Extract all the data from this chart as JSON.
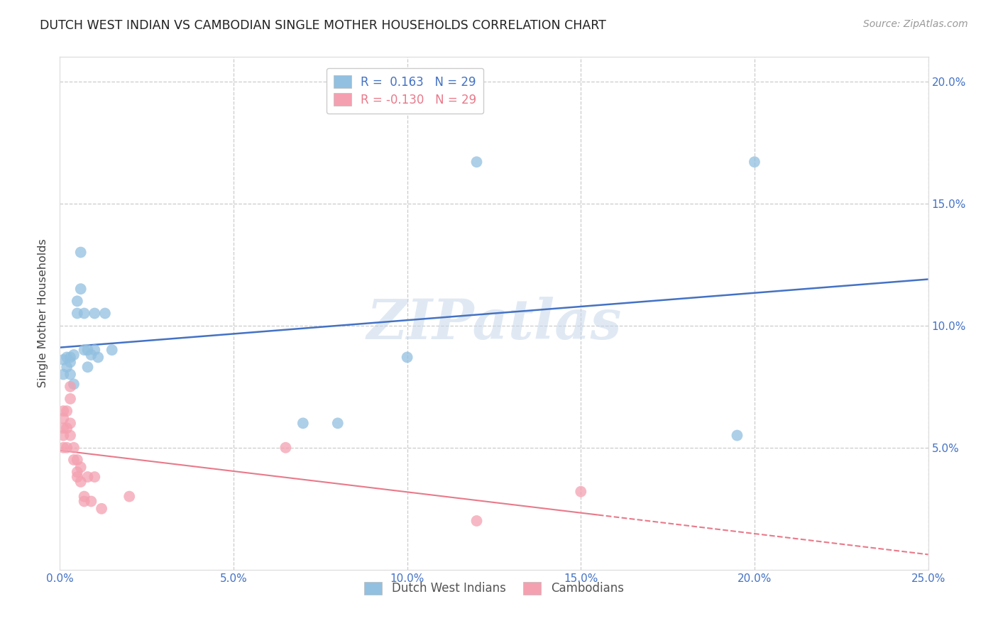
{
  "title": "DUTCH WEST INDIAN VS CAMBODIAN SINGLE MOTHER HOUSEHOLDS CORRELATION CHART",
  "source": "Source: ZipAtlas.com",
  "ylabel": "Single Mother Households",
  "xlim": [
    0.0,
    0.25
  ],
  "ylim": [
    0.0,
    0.21
  ],
  "xticks": [
    0.0,
    0.05,
    0.1,
    0.15,
    0.2,
    0.25
  ],
  "yticks": [
    0.0,
    0.05,
    0.1,
    0.15,
    0.2
  ],
  "xtick_labels": [
    "0.0%",
    "5.0%",
    "10.0%",
    "15.0%",
    "20.0%",
    "25.0%"
  ],
  "ytick_labels": [
    "",
    "5.0%",
    "10.0%",
    "15.0%",
    "20.0%"
  ],
  "right_ytick_labels": [
    "",
    "5.0%",
    "10.0%",
    "15.0%",
    "20.0%"
  ],
  "legend_line1": "R =  0.163   N = 29",
  "legend_line2": "R = -0.130   N = 29",
  "legend_bottom": [
    "Dutch West Indians",
    "Cambodians"
  ],
  "blue_scatter_color": "#92c0e0",
  "pink_scatter_color": "#f4a0b0",
  "blue_line_color": "#4472c4",
  "pink_line_color": "#e87a8a",
  "watermark": "ZIPatlas",
  "dutch_x": [
    0.001,
    0.001,
    0.002,
    0.002,
    0.003,
    0.003,
    0.003,
    0.004,
    0.004,
    0.005,
    0.005,
    0.006,
    0.006,
    0.007,
    0.007,
    0.008,
    0.008,
    0.009,
    0.01,
    0.01,
    0.011,
    0.013,
    0.015,
    0.07,
    0.08,
    0.1,
    0.12,
    0.195,
    0.2
  ],
  "dutch_y": [
    0.086,
    0.08,
    0.087,
    0.083,
    0.087,
    0.085,
    0.08,
    0.088,
    0.076,
    0.11,
    0.105,
    0.13,
    0.115,
    0.105,
    0.09,
    0.09,
    0.083,
    0.088,
    0.105,
    0.09,
    0.087,
    0.105,
    0.09,
    0.06,
    0.06,
    0.087,
    0.167,
    0.055,
    0.167
  ],
  "cambodian_x": [
    0.001,
    0.001,
    0.001,
    0.001,
    0.001,
    0.002,
    0.002,
    0.002,
    0.003,
    0.003,
    0.003,
    0.003,
    0.004,
    0.004,
    0.005,
    0.005,
    0.005,
    0.006,
    0.006,
    0.007,
    0.007,
    0.008,
    0.009,
    0.01,
    0.012,
    0.02,
    0.065,
    0.12,
    0.15
  ],
  "cambodian_y": [
    0.065,
    0.062,
    0.058,
    0.055,
    0.05,
    0.065,
    0.058,
    0.05,
    0.075,
    0.07,
    0.06,
    0.055,
    0.05,
    0.045,
    0.045,
    0.04,
    0.038,
    0.042,
    0.036,
    0.03,
    0.028,
    0.038,
    0.028,
    0.038,
    0.025,
    0.03,
    0.05,
    0.02,
    0.032
  ]
}
